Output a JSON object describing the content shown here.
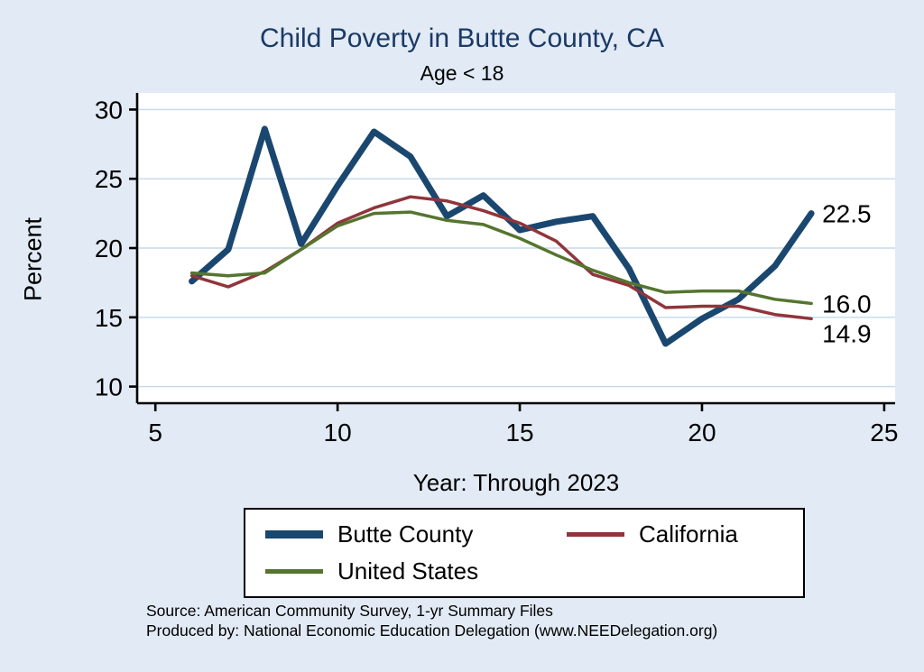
{
  "colors": {
    "background": "#e2eaf5",
    "title": "#1a3a66",
    "grid": "#c5d8ec",
    "axis": "#000000"
  },
  "chart_data": {
    "type": "line",
    "title": "Child Poverty in Butte County, CA",
    "subtitle": "Age < 18",
    "ylabel": "Percent",
    "xlabel": "Year: Through 2023",
    "xlim": [
      5,
      25
    ],
    "ylim": [
      10,
      30
    ],
    "xticks": [
      5,
      10,
      15,
      20,
      25
    ],
    "yticks": [
      10,
      15,
      20,
      25,
      30
    ],
    "grid": "horizontal",
    "legend_position": "bottom",
    "x": [
      6,
      7,
      8,
      9,
      10,
      11,
      12,
      13,
      14,
      15,
      16,
      17,
      18,
      19,
      20,
      21,
      22,
      23
    ],
    "series": [
      {
        "name": "Butte County",
        "color": "#1a476f",
        "line_width": 7,
        "end_label": "22.5",
        "values": [
          17.6,
          19.9,
          28.6,
          20.3,
          24.5,
          28.4,
          26.6,
          22.3,
          23.8,
          21.3,
          21.9,
          22.3,
          18.5,
          13.1,
          14.9,
          16.3,
          18.7,
          22.5
        ]
      },
      {
        "name": "California",
        "color": "#90353b",
        "line_width": 3.5,
        "end_label": "14.9",
        "values": [
          18.0,
          17.2,
          18.3,
          19.9,
          21.8,
          22.9,
          23.7,
          23.4,
          22.7,
          21.8,
          20.5,
          18.1,
          17.3,
          15.7,
          15.8,
          15.8,
          15.2,
          14.9
        ]
      },
      {
        "name": "United States",
        "color": "#55752f",
        "line_width": 3.5,
        "end_label": "16.0",
        "values": [
          18.2,
          18.0,
          18.2,
          19.9,
          21.6,
          22.5,
          22.6,
          22.0,
          21.7,
          20.7,
          19.5,
          18.4,
          17.5,
          16.8,
          16.9,
          16.9,
          16.3,
          16.0
        ]
      }
    ]
  },
  "notes": {
    "source": "Source: American Community Survey, 1-yr Summary Files",
    "produced_by": "Produced by: National Economic Education Delegation (www.NEEDelegation.org)"
  }
}
